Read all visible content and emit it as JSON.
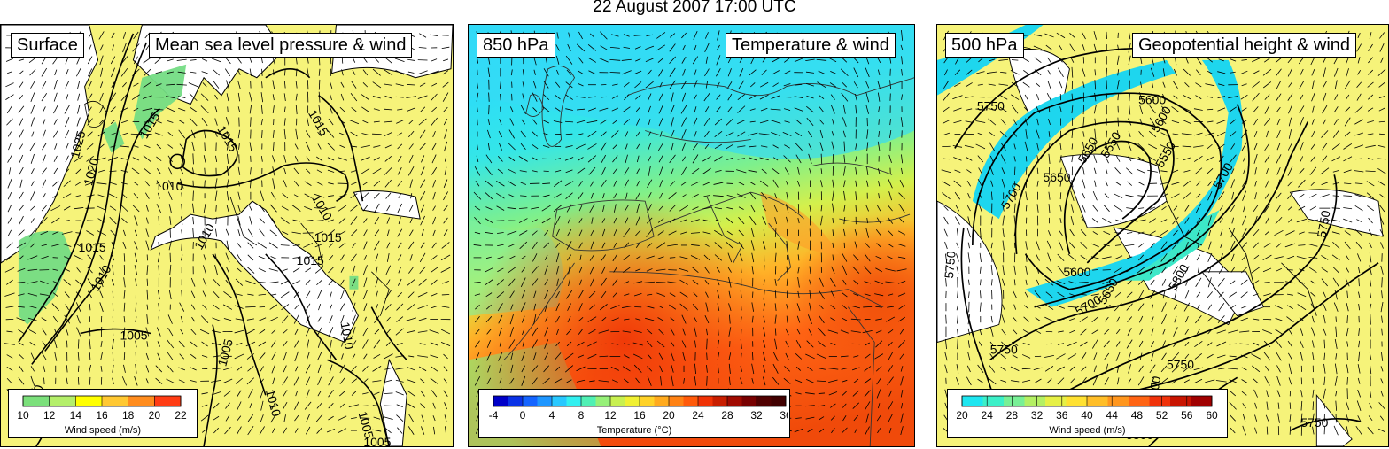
{
  "title": "22 August 2007 17:00 UTC",
  "panels": [
    {
      "level_label": "Surface",
      "field_label": "Mean sea level pressure & wind",
      "contour_labels": [
        "1025",
        "1020",
        "1015",
        "1015",
        "1010",
        "1015",
        "1010",
        "1015",
        "1015",
        "1010",
        "1015",
        "1010",
        "1005",
        "1005",
        "1010",
        "1010",
        "1005",
        "1010",
        "1005"
      ],
      "legend": {
        "title": "Wind speed (m/s)",
        "ticks": [
          "10",
          "12",
          "14",
          "16",
          "18",
          "20",
          "22"
        ],
        "colors": [
          "#7be07b",
          "#b4ef6a",
          "#ffff00",
          "#ffc832",
          "#ff8c1e",
          "#ff3c14"
        ]
      }
    },
    {
      "level_label": "850 hPa",
      "field_label": "Temperature & wind",
      "legend": {
        "title": "Temperature (°C)",
        "ticks": [
          "-4",
          "0",
          "4",
          "8",
          "12",
          "16",
          "20",
          "24",
          "28",
          "32",
          "36"
        ],
        "colors": [
          "#0000c8",
          "#0a32e6",
          "#1464ff",
          "#1e96ff",
          "#28c8ff",
          "#32f0f0",
          "#50f0b4",
          "#96f078",
          "#c8f050",
          "#f0f032",
          "#ffd228",
          "#ffaa1e",
          "#ff8214",
          "#ff5a0a",
          "#f03205",
          "#c81e00",
          "#a00a00",
          "#780000",
          "#500000",
          "#400000"
        ]
      }
    },
    {
      "level_label": "500 hPa",
      "field_label": "Geopotential height & wind",
      "contour_labels": [
        "5750",
        "5600",
        "5650",
        "5650",
        "5550",
        "5600",
        "5550",
        "5700",
        "5700",
        "5750",
        "5600",
        "5650",
        "5700",
        "5750",
        "5800",
        "5750",
        "5800",
        "5800",
        "5750",
        "5750"
      ],
      "legend": {
        "title": "Wind speed (m/s)",
        "ticks": [
          "20",
          "24",
          "28",
          "32",
          "36",
          "40",
          "44",
          "48",
          "52",
          "56",
          "60"
        ],
        "colors": [
          "#1ee6f0",
          "#3cf0c8",
          "#78f096",
          "#b4f064",
          "#e6f046",
          "#ffe132",
          "#ffbe28",
          "#ff961e",
          "#ff6414",
          "#f0320a",
          "#c81400",
          "#a00000"
        ]
      }
    }
  ]
}
